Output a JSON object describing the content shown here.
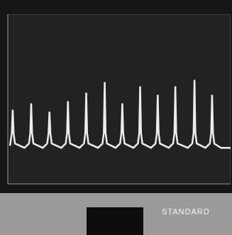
{
  "chart_data": {
    "type": "line",
    "annotations": [
      "STANDARD"
    ],
    "x": [
      0.1,
      0.18,
      0.22,
      0.26,
      0.32,
      0.75,
      0.95,
      1.01,
      1.05,
      1.09,
      1.15,
      1.57,
      1.77,
      1.83,
      1.87,
      1.91,
      1.97,
      2.4,
      2.6,
      2.66,
      2.7,
      2.74,
      2.8,
      3.22,
      3.42,
      3.48,
      3.52,
      3.56,
      3.62,
      4.05,
      4.25,
      4.31,
      4.35,
      4.39,
      4.45,
      4.84,
      5.04,
      5.1,
      5.14,
      5.18,
      5.24,
      5.64,
      5.84,
      5.9,
      5.94,
      5.98,
      6.04,
      6.43,
      6.63,
      6.69,
      6.73,
      6.77,
      6.83,
      7.22,
      7.42,
      7.48,
      7.52,
      7.56,
      7.62,
      8.08,
      8.28,
      8.34,
      8.38,
      8.42,
      8.48,
      8.87,
      9.07,
      9.13,
      9.17,
      9.21,
      9.27,
      9.57,
      10
    ],
    "values": [
      1.8,
      2.4,
      3.5,
      2.4,
      1.9,
      1.7,
      1.9,
      2.4,
      3.8,
      2.4,
      1.9,
      1.7,
      1.9,
      2.4,
      3.4,
      2.4,
      1.9,
      1.7,
      1.9,
      2.4,
      3.9,
      2.4,
      1.9,
      1.7,
      1.9,
      2.4,
      4.3,
      2.4,
      1.9,
      1.7,
      1.9,
      2.4,
      4.8,
      2.4,
      1.9,
      1.7,
      1.9,
      2.4,
      3.8,
      2.4,
      1.9,
      1.7,
      1.9,
      2.4,
      4.6,
      2.4,
      1.9,
      1.7,
      1.9,
      2.4,
      4.2,
      2.4,
      1.9,
      1.7,
      1.9,
      2.4,
      4.6,
      2.4,
      1.9,
      1.7,
      1.9,
      2.4,
      4.9,
      2.4,
      1.9,
      1.7,
      1.9,
      2.4,
      4.2,
      2.4,
      1.9,
      1.7,
      1.7
    ],
    "color": "#ececec",
    "xlim": [
      0,
      10
    ],
    "ylim": [
      0,
      8
    ],
    "xticks": [
      0,
      1,
      2,
      3,
      4,
      5,
      6,
      7,
      8,
      9,
      10
    ],
    "yticks": [
      0,
      1,
      2,
      3,
      4,
      5,
      6,
      7,
      8
    ],
    "grid": true,
    "tick_labels": false
  }
}
